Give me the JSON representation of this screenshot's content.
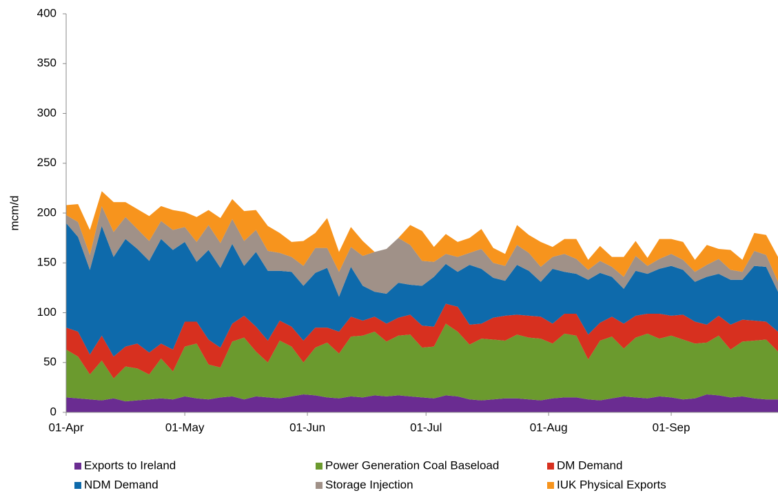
{
  "chart_data": {
    "type": "stacked-area",
    "y_label": "mcm/d",
    "x": [
      "01-Apr",
      "04-Apr",
      "07-Apr",
      "10-Apr",
      "13-Apr",
      "16-Apr",
      "19-Apr",
      "22-Apr",
      "25-Apr",
      "28-Apr",
      "01-May",
      "04-May",
      "07-May",
      "10-May",
      "13-May",
      "16-May",
      "19-May",
      "22-May",
      "25-May",
      "28-May",
      "31-May",
      "03-Jun",
      "06-Jun",
      "09-Jun",
      "12-Jun",
      "15-Jun",
      "18-Jun",
      "21-Jun",
      "24-Jun",
      "27-Jun",
      "30-Jun",
      "03-Jul",
      "06-Jul",
      "09-Jul",
      "12-Jul",
      "15-Jul",
      "18-Jul",
      "21-Jul",
      "24-Jul",
      "27-Jul",
      "30-Jul",
      "02-Aug",
      "05-Aug",
      "08-Aug",
      "11-Aug",
      "14-Aug",
      "17-Aug",
      "20-Aug",
      "23-Aug",
      "26-Aug",
      "29-Aug",
      "01-Sep",
      "04-Sep",
      "07-Sep",
      "10-Sep",
      "13-Sep",
      "16-Sep",
      "19-Sep",
      "22-Sep",
      "25-Sep",
      "28-Sep"
    ],
    "xlim": [
      "01-Apr",
      "28-Sep"
    ],
    "xticks": [
      "01-Apr",
      "01-May",
      "01-Jun",
      "01-Jul",
      "01-Aug",
      "01-Sep"
    ],
    "ylim": [
      0,
      400
    ],
    "yticks": [
      0,
      50,
      100,
      150,
      200,
      250,
      300,
      350,
      400
    ],
    "series": [
      {
        "name": "Exports to Ireland",
        "color": "#6a2c91",
        "values": [
          15,
          14,
          13,
          12,
          14,
          11,
          12,
          13,
          14,
          13,
          16,
          14,
          13,
          15,
          16,
          13,
          16,
          15,
          14,
          16,
          18,
          17,
          15,
          14,
          16,
          15,
          17,
          16,
          17,
          16,
          15,
          14,
          17,
          16,
          13,
          12,
          13,
          14,
          14,
          13,
          12,
          14,
          15,
          15,
          13,
          12,
          14,
          16,
          15,
          14,
          16,
          15,
          13,
          14,
          18,
          17,
          15,
          16,
          14,
          13,
          13
        ]
      },
      {
        "name": "Power Generation Coal Baseload",
        "color": "#6b9a2e",
        "values": [
          48,
          42,
          25,
          40,
          20,
          35,
          32,
          25,
          40,
          28,
          50,
          55,
          35,
          30,
          55,
          62,
          45,
          35,
          58,
          50,
          32,
          48,
          55,
          45,
          60,
          62,
          64,
          55,
          60,
          62,
          50,
          52,
          72,
          65,
          55,
          62,
          60,
          58,
          64,
          62,
          62,
          55,
          64,
          62,
          40,
          60,
          62,
          48,
          60,
          65,
          58,
          62,
          60,
          55,
          52,
          60,
          48,
          55,
          58,
          60,
          48
        ]
      },
      {
        "name": "DM Demand",
        "color": "#d7301f",
        "values": [
          22,
          25,
          20,
          25,
          22,
          20,
          25,
          22,
          15,
          22,
          25,
          22,
          25,
          20,
          18,
          22,
          25,
          22,
          20,
          20,
          22,
          20,
          15,
          22,
          20,
          15,
          15,
          18,
          18,
          20,
          22,
          20,
          20,
          25,
          20,
          15,
          22,
          25,
          20,
          22,
          22,
          20,
          20,
          22,
          25,
          18,
          20,
          25,
          22,
          20,
          25,
          20,
          25,
          22,
          18,
          20,
          25,
          22,
          20,
          18,
          20
        ]
      },
      {
        "name": "NDM Demand",
        "color": "#0e6aab",
        "values": [
          105,
          95,
          85,
          110,
          100,
          108,
          95,
          92,
          105,
          100,
          80,
          60,
          90,
          80,
          80,
          50,
          75,
          70,
          50,
          55,
          55,
          55,
          60,
          35,
          50,
          35,
          25,
          30,
          35,
          30,
          40,
          50,
          40,
          35,
          60,
          55,
          40,
          35,
          50,
          45,
          35,
          55,
          42,
          40,
          55,
          50,
          40,
          35,
          45,
          40,
          45,
          50,
          45,
          40,
          48,
          42,
          45,
          40,
          55,
          55,
          40
        ]
      },
      {
        "name": "Storage Injection",
        "color": "#a09188",
        "values": [
          8,
          15,
          15,
          20,
          25,
          22,
          20,
          20,
          18,
          20,
          15,
          20,
          25,
          25,
          25,
          25,
          22,
          20,
          18,
          15,
          20,
          25,
          20,
          25,
          20,
          30,
          40,
          45,
          45,
          40,
          25,
          15,
          10,
          15,
          12,
          20,
          15,
          15,
          20,
          18,
          15,
          12,
          18,
          15,
          10,
          12,
          10,
          12,
          15,
          8,
          10,
          12,
          10,
          10,
          12,
          15,
          10,
          8,
          15,
          12,
          10
        ]
      },
      {
        "name": "IUK Physical Exports",
        "color": "#f7941d",
        "values": [
          10,
          18,
          25,
          15,
          30,
          15,
          20,
          25,
          15,
          20,
          15,
          25,
          15,
          25,
          20,
          30,
          20,
          25,
          20,
          15,
          25,
          15,
          30,
          20,
          20,
          15,
          0,
          0,
          0,
          20,
          30,
          15,
          20,
          15,
          15,
          20,
          15,
          12,
          20,
          18,
          25,
          10,
          15,
          20,
          10,
          15,
          10,
          20,
          15,
          8,
          20,
          15,
          18,
          12,
          20,
          10,
          20,
          12,
          18,
          20,
          25
        ]
      }
    ]
  }
}
